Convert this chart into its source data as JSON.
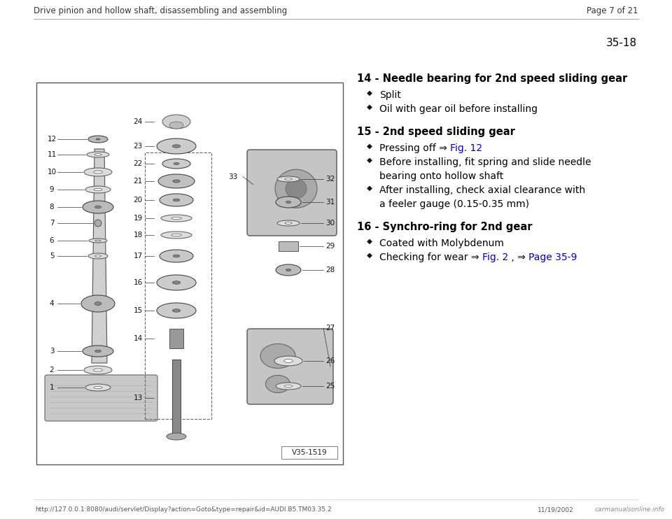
{
  "bg_color": "#ffffff",
  "header_text": "Drive pinion and hollow shaft, disassembling and assembling",
  "page_text": "Page 7 of 21",
  "section_number": "35-18",
  "footer_url": "http://127.0.0.1:8080/audi/servlet/Display?action=Goto&type=repair&id=AUDI.B5.TM03.35.2",
  "footer_date": "11/19/2002",
  "footer_logo": "carmanualsonline.info",
  "diagram_label": "V35-1519",
  "link_color": "#0000cc",
  "text_color": "#000000",
  "bullet_color": "#111111",
  "header_line_color": "#aaaaaa",
  "items": [
    {
      "number": "14",
      "title": " - Needle bearing for 2nd speed sliding gear",
      "bullets": [
        {
          "parts": [
            {
              "t": "Split",
              "link": false
            }
          ]
        },
        {
          "parts": [
            {
              "t": "Oil with gear oil before installing",
              "link": false
            }
          ]
        }
      ]
    },
    {
      "number": "15",
      "title": " - 2nd speed sliding gear",
      "bullets": [
        {
          "parts": [
            {
              "t": "Pressing off ⇒ ",
              "link": false
            },
            {
              "t": "Fig. 12",
              "link": true
            }
          ]
        },
        {
          "parts": [
            {
              "t": "Before installing, fit spring and slide needle",
              "link": false
            }
          ],
          "line2": "bearing onto hollow shaft"
        },
        {
          "parts": [
            {
              "t": "After installing, check axial clearance with",
              "link": false
            }
          ],
          "line2": "a feeler gauge (0.15-0.35 mm)"
        }
      ]
    },
    {
      "number": "16",
      "title": " - Synchro-ring for 2nd gear",
      "bullets": [
        {
          "parts": [
            {
              "t": "Coated with Molybdenum",
              "link": false
            }
          ]
        },
        {
          "parts": [
            {
              "t": "Checking for wear ⇒ ",
              "link": false
            },
            {
              "t": "Fig. 2",
              "link": true
            },
            {
              "t": " , ⇒ ",
              "link": false
            },
            {
              "t": "Page 35-9",
              "link": true
            }
          ]
        }
      ]
    }
  ]
}
